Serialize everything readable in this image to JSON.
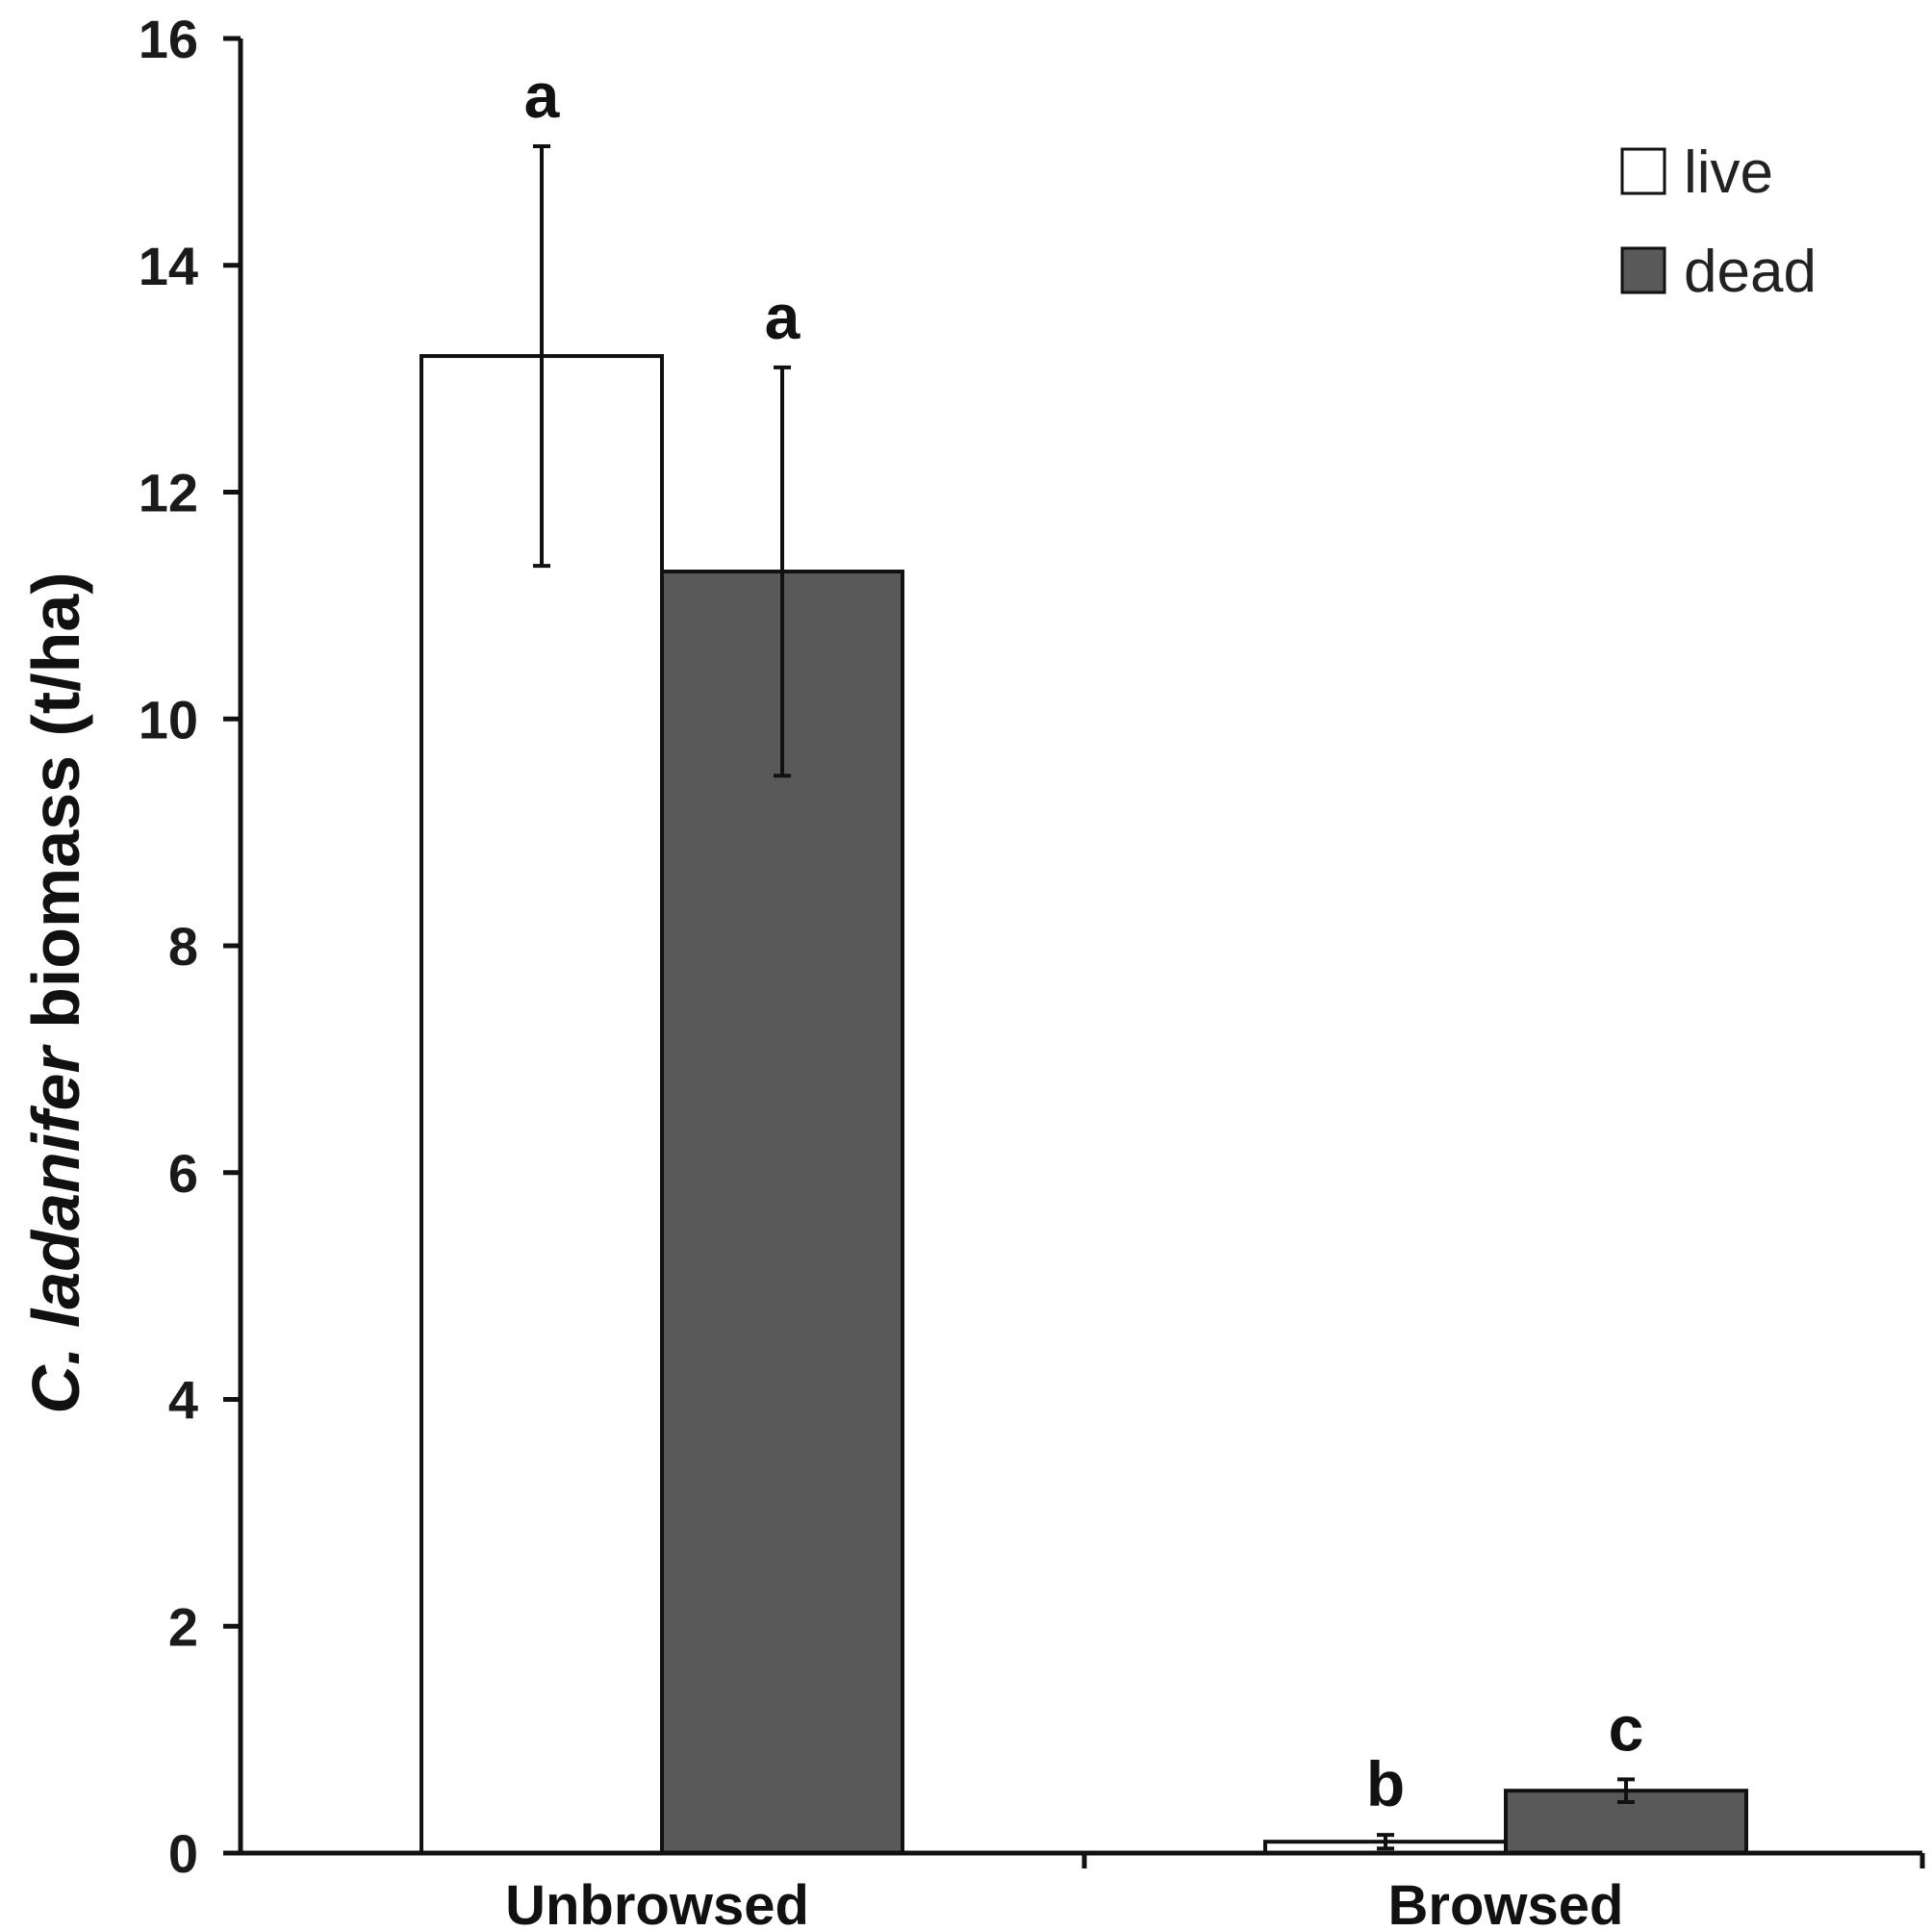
{
  "chart_data": {
    "type": "bar",
    "categories": [
      "Unbrowsed",
      "Browsed"
    ],
    "series": [
      {
        "name": "live",
        "color": "#ffffff",
        "values": [
          13.2,
          0.1
        ],
        "errors": [
          1.85,
          0.06
        ],
        "sig_letters": [
          "a",
          "b"
        ]
      },
      {
        "name": "dead",
        "color": "#595959",
        "values": [
          11.3,
          0.55
        ],
        "errors": [
          1.8,
          0.1
        ],
        "sig_letters": [
          "a",
          "c"
        ]
      }
    ],
    "ylabel": {
      "prefix": "C. ",
      "italic": "ladanifer",
      "suffix": " biomass (t/ha)"
    },
    "xlabel": "",
    "ylim": [
      0,
      16
    ],
    "yticks": [
      "0",
      "2",
      "4",
      "6",
      "8",
      "10",
      "12",
      "14",
      "16"
    ],
    "grid": false,
    "legend_position": "top-right"
  }
}
